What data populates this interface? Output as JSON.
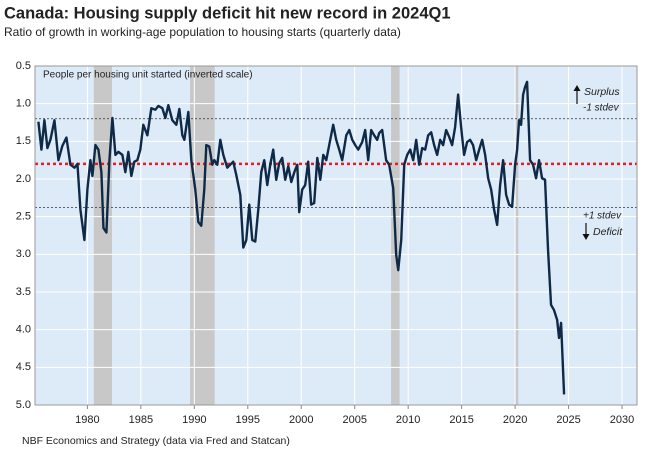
{
  "chart_data": {
    "type": "line",
    "title": "Canada: Housing supply deficit hit new record in 2024Q1",
    "subtitle": "Ratio of growth in working-age population to housing starts (quarterly data)",
    "axis_note": "People per housing unit started (inverted scale)",
    "source": "NBF Economics and Strategy (data via Fred and Statcan)",
    "annotations": {
      "surplus": "Surplus",
      "minus_stdev": "-1 stdev",
      "plus_stdev": "+1 stdev",
      "deficit": "Deficit"
    },
    "color": "#0e2a47",
    "inverted_y": true,
    "grid": true,
    "background": "#ddeaf8",
    "shade_color": "#c8c8c8",
    "shaded_periods": [
      [
        1980.6,
        1982.3
      ],
      [
        1989.6,
        1991.9
      ],
      [
        2008.4,
        2009.2
      ],
      [
        2020.0,
        2020.3
      ]
    ],
    "reference_lines": [
      {
        "value": 1.2,
        "color": "#333333"
      },
      {
        "value": 1.8,
        "color": "#e02020"
      },
      {
        "value": 2.38,
        "color": "#333333"
      }
    ],
    "xlim": [
      1975.1,
      2031.4
    ],
    "xticks": [
      1980,
      1985,
      1990,
      1995,
      2000,
      2005,
      2010,
      2015,
      2020,
      2025,
      2030
    ],
    "ylim": [
      0.5,
      5.0
    ],
    "yticks": [
      0.5,
      {
        "value": 1.0,
        "label": "1.0"
      },
      1.5,
      {
        "value": 2.0,
        "label": "2.0"
      },
      2.5,
      {
        "value": 3.0,
        "label": "3.0"
      },
      3.5,
      {
        "value": 4.0,
        "label": "4.0"
      },
      4.5,
      {
        "value": 5.0,
        "label": "5.0"
      }
    ],
    "x": [
      1975.42,
      1975.7,
      1975.98,
      1976.26,
      1976.54,
      1976.92,
      1977.29,
      1977.66,
      1978.04,
      1978.41,
      1978.79,
      1979.07,
      1979.35,
      1979.72,
      1980.0,
      1980.28,
      1980.47,
      1980.75,
      1981.03,
      1981.31,
      1981.5,
      1981.78,
      1982.06,
      1982.34,
      1982.62,
      1982.9,
      1983.27,
      1983.55,
      1983.83,
      1984.11,
      1984.39,
      1984.67,
      1984.95,
      1985.23,
      1985.61,
      1985.98,
      1986.36,
      1986.64,
      1987.01,
      1987.29,
      1987.57,
      1987.94,
      1988.32,
      1988.6,
      1988.88,
      1989.07,
      1989.44,
      1989.72,
      1990.09,
      1990.37,
      1990.65,
      1990.93,
      1991.12,
      1991.4,
      1991.68,
      1991.87,
      1992.15,
      1992.43,
      1992.71,
      1993.08,
      1993.36,
      1993.64,
      1993.93,
      1994.3,
      1994.58,
      1994.86,
      1995.14,
      1995.42,
      1995.7,
      1995.98,
      1996.26,
      1996.54,
      1996.82,
      1997.1,
      1997.38,
      1997.66,
      1997.94,
      1998.22,
      1998.5,
      1998.79,
      1999.07,
      1999.35,
      1999.63,
      1999.81,
      2000.09,
      2000.37,
      2000.65,
      2000.93,
      2001.21,
      2001.5,
      2001.78,
      2002.06,
      2002.34,
      2002.71,
      2002.99,
      2003.27,
      2003.55,
      2003.83,
      2004.21,
      2004.49,
      2004.77,
      2005.05,
      2005.33,
      2005.7,
      2005.98,
      2006.26,
      2006.54,
      2006.82,
      2007.1,
      2007.29,
      2007.57,
      2007.94,
      2008.22,
      2008.6,
      2008.88,
      2009.07,
      2009.35,
      2009.63,
      2009.91,
      2010.19,
      2010.47,
      2010.75,
      2011.03,
      2011.31,
      2011.59,
      2011.87,
      2012.15,
      2012.43,
      2012.71,
      2012.99,
      2013.27,
      2013.55,
      2013.83,
      2014.11,
      2014.39,
      2014.67,
      2014.95,
      2015.23,
      2015.51,
      2015.79,
      2016.07,
      2016.36,
      2016.64,
      2016.92,
      2017.2,
      2017.48,
      2017.76,
      2018.04,
      2018.32,
      2018.6,
      2018.88,
      2019.16,
      2019.44,
      2019.72,
      2020.0,
      2020.19,
      2020.37,
      2020.56,
      2020.75,
      2020.93,
      2021.12,
      2021.4,
      2021.68,
      2021.96,
      2022.24,
      2022.52,
      2022.8,
      2023.08,
      2023.36,
      2023.64,
      2023.93,
      2024.11,
      2024.3,
      2024.58
    ],
    "values": [
      1.24,
      1.61,
      1.22,
      1.59,
      1.48,
      1.22,
      1.75,
      1.56,
      1.45,
      1.81,
      1.85,
      1.8,
      2.41,
      2.81,
      2.14,
      1.75,
      1.96,
      1.55,
      1.61,
      1.91,
      2.65,
      2.71,
      1.75,
      1.19,
      1.68,
      1.64,
      1.68,
      1.91,
      1.64,
      1.96,
      1.77,
      1.75,
      1.61,
      1.28,
      1.42,
      1.06,
      1.08,
      1.03,
      1.06,
      1.19,
      1.02,
      1.22,
      1.28,
      1.07,
      1.42,
      1.48,
      1.11,
      1.75,
      2.14,
      2.57,
      2.62,
      2.14,
      1.55,
      1.57,
      1.81,
      1.75,
      1.81,
      1.48,
      1.68,
      1.85,
      1.81,
      1.77,
      1.95,
      2.21,
      2.91,
      2.81,
      2.34,
      2.81,
      2.83,
      2.41,
      1.91,
      1.75,
      2.08,
      1.81,
      1.61,
      2.01,
      1.79,
      1.72,
      2.01,
      1.83,
      2.04,
      1.91,
      1.81,
      2.44,
      2.14,
      2.08,
      1.77,
      2.34,
      2.32,
      1.72,
      2.01,
      1.68,
      1.75,
      1.48,
      1.28,
      1.48,
      1.61,
      1.75,
      1.42,
      1.35,
      1.48,
      1.55,
      1.61,
      1.51,
      1.35,
      1.75,
      1.35,
      1.42,
      1.48,
      1.39,
      1.35,
      1.75,
      1.81,
      2.12,
      3.01,
      3.21,
      2.81,
      1.81,
      1.68,
      1.61,
      1.75,
      1.48,
      1.81,
      1.59,
      1.61,
      1.42,
      1.38,
      1.55,
      1.68,
      1.48,
      1.55,
      1.35,
      1.44,
      1.55,
      1.31,
      0.88,
      1.31,
      1.68,
      1.51,
      1.48,
      1.55,
      1.75,
      1.61,
      1.48,
      1.68,
      1.99,
      2.14,
      2.41,
      2.61,
      2.08,
      1.75,
      2.21,
      2.34,
      2.37,
      1.81,
      1.61,
      1.22,
      1.28,
      0.88,
      0.78,
      0.71,
      1.75,
      1.81,
      1.99,
      1.75,
      1.99,
      2.01,
      2.94,
      3.67,
      3.74,
      3.87,
      4.11,
      3.91,
      4.86
    ]
  }
}
